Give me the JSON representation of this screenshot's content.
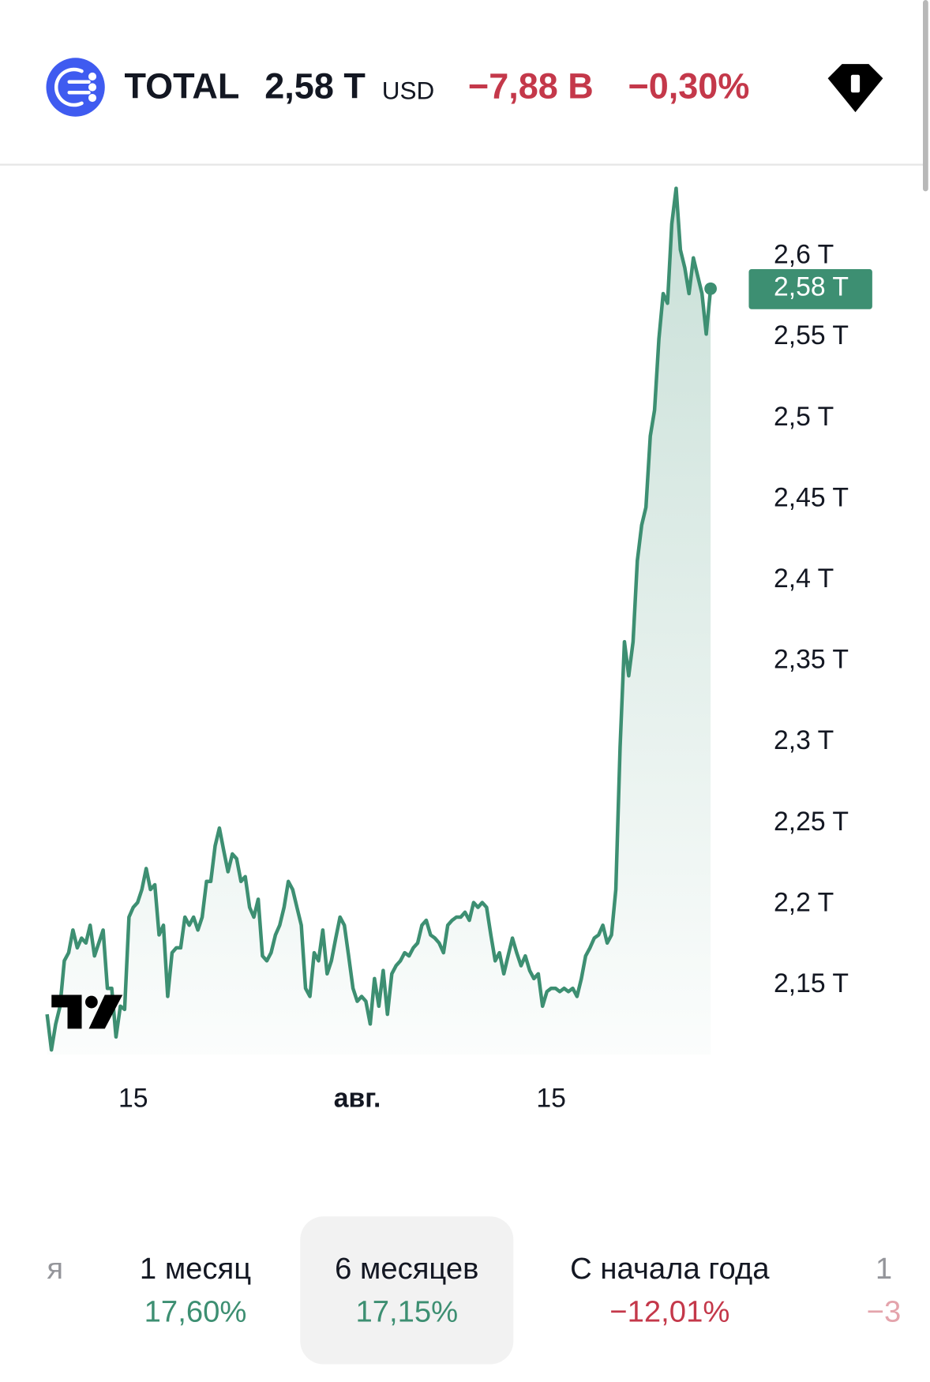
{
  "header": {
    "symbol": "TOTAL",
    "price": "2,58 T",
    "currency": "USD",
    "change": "−7,88 B",
    "change_percent": "−0,30%"
  },
  "chart_data": {
    "type": "line",
    "color": "#3d8f72",
    "values": [
      2.132,
      2.11,
      2.126,
      2.137,
      2.165,
      2.17,
      2.184,
      2.173,
      2.179,
      2.176,
      2.187,
      2.168,
      2.176,
      2.184,
      2.148,
      2.148,
      2.118,
      2.137,
      2.135,
      2.192,
      2.198,
      2.201,
      2.209,
      2.222,
      2.209,
      2.212,
      2.181,
      2.187,
      2.143,
      2.17,
      2.173,
      2.173,
      2.192,
      2.187,
      2.192,
      2.184,
      2.192,
      2.214,
      2.214,
      2.236,
      2.247,
      2.233,
      2.22,
      2.231,
      2.228,
      2.214,
      2.217,
      2.198,
      2.192,
      2.203,
      2.168,
      2.165,
      2.17,
      2.181,
      2.187,
      2.198,
      2.214,
      2.209,
      2.198,
      2.187,
      2.148,
      2.143,
      2.17,
      2.165,
      2.184,
      2.157,
      2.165,
      2.179,
      2.192,
      2.187,
      2.168,
      2.148,
      2.14,
      2.143,
      2.14,
      2.126,
      2.154,
      2.137,
      2.159,
      2.132,
      2.157,
      2.162,
      2.165,
      2.17,
      2.168,
      2.173,
      2.176,
      2.187,
      2.19,
      2.181,
      2.179,
      2.176,
      2.17,
      2.187,
      2.19,
      2.192,
      2.192,
      2.195,
      2.19,
      2.201,
      2.198,
      2.201,
      2.198,
      2.181,
      2.165,
      2.17,
      2.157,
      2.168,
      2.179,
      2.17,
      2.162,
      2.168,
      2.159,
      2.154,
      2.157,
      2.137,
      2.146,
      2.148,
      2.148,
      2.146,
      2.148,
      2.146,
      2.148,
      2.143,
      2.154,
      2.168,
      2.173,
      2.179,
      2.181,
      2.187,
      2.176,
      2.181,
      2.209,
      2.297,
      2.362,
      2.341,
      2.362,
      2.412,
      2.434,
      2.445,
      2.489,
      2.505,
      2.549,
      2.577,
      2.571,
      2.62,
      2.642,
      2.604,
      2.593,
      2.577,
      2.599,
      2.588,
      2.577,
      2.552,
      2.58
    ],
    "xlim": [
      0,
      154
    ],
    "xticks": [
      {
        "value": 20,
        "label": "15"
      },
      {
        "value": 72,
        "label": "авг."
      },
      {
        "value": 117,
        "label": "15"
      }
    ],
    "ylim": [
      2.1,
      2.65
    ],
    "yticks": [
      {
        "value": 2.15,
        "label": "2,15 T"
      },
      {
        "value": 2.2,
        "label": "2,2 T"
      },
      {
        "value": 2.25,
        "label": "2,25 T"
      },
      {
        "value": 2.3,
        "label": "2,3 T"
      },
      {
        "value": 2.35,
        "label": "2,35 T"
      },
      {
        "value": 2.4,
        "label": "2,4 T"
      },
      {
        "value": 2.45,
        "label": "2,45 T"
      },
      {
        "value": 2.5,
        "label": "2,5 T"
      },
      {
        "value": 2.55,
        "label": "2,55 T"
      },
      {
        "value": 2.6,
        "label": "2,6 T"
      }
    ],
    "last_label": {
      "value": 2.58,
      "label": "2,58 T"
    }
  },
  "periods": [
    {
      "label": "я"
    },
    {
      "label": "1 месяц",
      "change": "17,60%"
    },
    {
      "label": "6 месяцев",
      "change": "17,15%"
    },
    {
      "label": "С начала года",
      "change": "−12,01%"
    },
    {
      "label": "1",
      "change": "−3"
    }
  ]
}
